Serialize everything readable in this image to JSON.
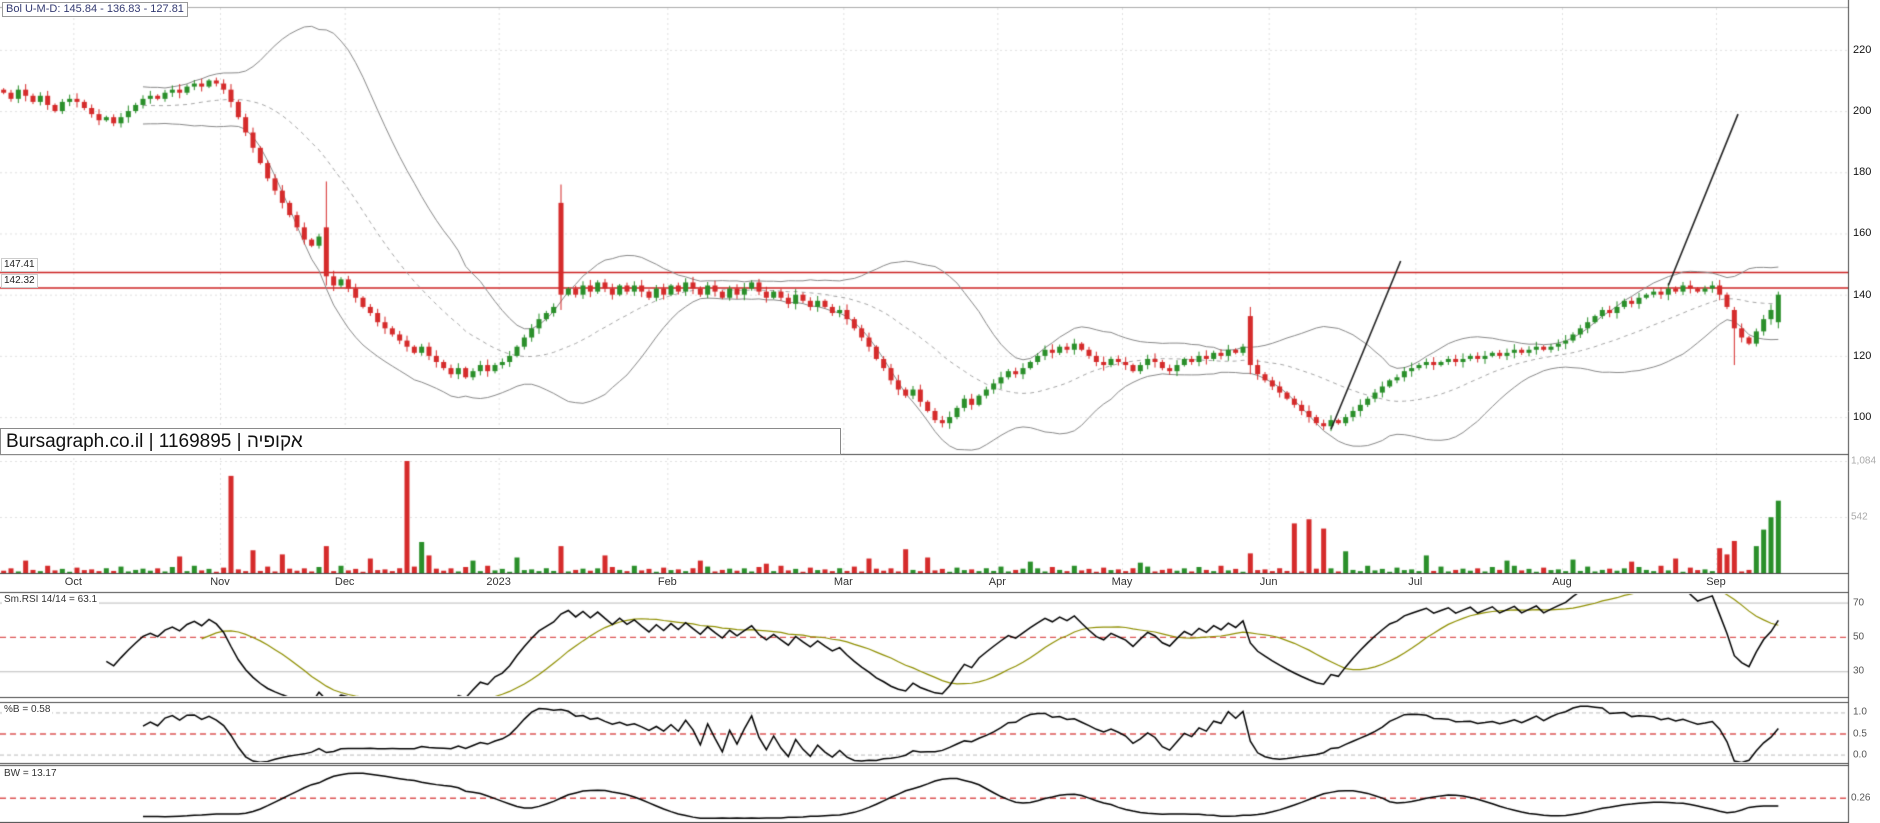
{
  "app": {
    "watermark": "Bursagraph.co.il | 1169895 | אקופיה"
  },
  "header": {
    "bollinger_label": "Bol U-M-D: 145.84 - 136.83 - 127.81"
  },
  "panels": {
    "rsi": {
      "label": "Sm.RSI 14/14 = 63.1",
      "ticks": [
        70,
        50,
        30
      ],
      "mid_line": 50
    },
    "percent_b": {
      "label": "%B = 0.58",
      "ticks": [
        "1.0",
        "0.5",
        "0.0"
      ],
      "mid_line": 0.5
    },
    "bandwidth": {
      "label": "BW = 13.17",
      "level": 0.26,
      "level_label": "0.26"
    }
  },
  "chart_data": {
    "type": "candlestick",
    "title": "Bursagraph daily chart with Bollinger Bands, volume, Sm.RSI, %B and Bandwidth",
    "x_axis": {
      "months": [
        {
          "label": "Oct",
          "day": 10
        },
        {
          "label": "Nov",
          "day": 30
        },
        {
          "label": "Dec",
          "day": 47
        },
        {
          "label": "2023",
          "day": 68
        },
        {
          "label": "Feb",
          "day": 91
        },
        {
          "label": "Mar",
          "day": 115
        },
        {
          "label": "Apr",
          "day": 136
        },
        {
          "label": "May",
          "day": 153
        },
        {
          "label": "Jun",
          "day": 173
        },
        {
          "label": "Jul",
          "day": 193
        },
        {
          "label": "Aug",
          "day": 213
        },
        {
          "label": "Sep",
          "day": 234
        }
      ]
    },
    "y_axis": {
      "price_ticks": [
        220,
        200,
        180,
        160,
        140,
        120,
        100
      ],
      "price_range": [
        93,
        232
      ],
      "volume_ticks": [
        {
          "label": "1,084",
          "value": 1084
        },
        {
          "label": "542",
          "value": 542
        }
      ]
    },
    "levels": [
      {
        "value": 147.41,
        "label": "147.41"
      },
      {
        "value": 142.32,
        "label": "142.32"
      }
    ],
    "candles": {
      "closes": [
        206,
        204,
        207,
        205,
        203,
        205,
        202,
        200,
        203,
        204,
        203,
        201,
        199,
        197,
        198,
        196,
        198,
        200,
        202,
        204,
        205,
        204,
        206,
        207,
        206,
        208,
        209,
        208,
        210,
        209,
        207,
        203,
        198,
        193,
        188,
        183,
        178,
        174,
        170,
        166,
        162,
        158,
        156,
        159,
        146,
        143,
        145,
        142,
        139,
        136,
        134,
        131,
        129,
        127,
        125,
        123,
        121,
        123,
        120,
        118,
        116,
        114,
        116,
        113,
        115,
        117,
        115,
        117,
        118,
        120,
        123,
        126,
        129,
        132,
        134,
        136,
        140,
        142,
        140,
        143,
        141,
        144,
        142,
        140,
        143,
        141,
        143,
        141,
        139,
        142,
        140,
        143,
        141,
        144,
        142,
        140,
        143,
        141,
        139,
        142,
        140,
        142,
        144,
        141,
        139,
        141,
        139,
        137,
        140,
        138,
        136,
        138,
        136,
        134,
        135,
        132,
        129,
        126,
        123,
        119,
        116,
        112,
        109,
        107,
        109,
        105,
        102,
        99,
        98,
        100,
        103,
        106,
        104,
        107,
        109,
        111,
        113,
        115,
        114,
        116,
        118,
        120,
        122,
        121,
        123,
        122,
        124,
        122,
        120,
        118,
        117,
        119,
        118,
        117,
        115,
        117,
        119,
        118,
        116,
        115,
        117,
        119,
        118,
        120,
        119,
        121,
        120,
        122,
        121,
        123,
        117,
        114,
        112,
        110,
        108,
        106,
        104,
        102,
        100,
        98,
        97,
        99,
        98,
        100,
        102,
        104,
        106,
        108,
        110,
        112,
        113,
        115,
        116,
        117,
        118,
        117,
        118,
        119,
        118,
        119,
        120,
        119,
        120,
        121,
        120,
        121,
        122,
        121,
        122,
        123,
        122,
        123,
        124,
        125,
        127,
        129,
        131,
        133,
        135,
        134,
        136,
        138,
        137,
        139,
        140,
        141,
        140,
        142,
        141,
        143,
        142,
        141,
        142,
        143,
        140,
        136,
        129,
        126,
        124,
        128,
        132,
        135,
        140
      ],
      "special": {
        "44": [
          162,
          177,
          143,
          146
        ],
        "76": [
          170,
          176,
          135,
          140
        ],
        "170": [
          133,
          136,
          114,
          117
        ],
        "236": [
          135,
          136,
          117,
          129
        ],
        "242": [
          131,
          141,
          129,
          140
        ]
      }
    },
    "volume": {
      "unit_pattern": [
        22,
        45,
        15,
        58,
        30,
        18,
        70,
        25,
        40,
        12,
        52,
        28,
        35,
        18,
        46,
        20,
        62,
        15,
        30,
        42
      ],
      "spikes": {
        "3": 120,
        "24": 160,
        "31": 940,
        "34": 220,
        "38": 180,
        "44": 260,
        "50": 140,
        "55": 1084,
        "57": 300,
        "58": 170,
        "64": 120,
        "70": 150,
        "76": 260,
        "82": 170,
        "95": 120,
        "104": 90,
        "118": 140,
        "123": 230,
        "126": 150,
        "140": 110,
        "155": 100,
        "170": 190,
        "176": 480,
        "178": 520,
        "180": 430,
        "183": 210,
        "194": 170,
        "205": 120,
        "214": 130,
        "222": 110,
        "228": 140,
        "234": 240,
        "235": 180,
        "236": 310,
        "239": 260,
        "240": 420,
        "241": 540,
        "242": 700
      }
    },
    "annotations": {
      "trend_lines": [
        {
          "from": [
            181,
            96
          ],
          "to": [
            190.5,
            151
          ]
        },
        {
          "from": [
            227,
            143
          ],
          "to": [
            236.5,
            199
          ]
        }
      ]
    },
    "indicators": {
      "bollinger_period": 20,
      "bollinger_mult": 2,
      "rsi_period": 14,
      "rsi_smooth": 14
    },
    "colors": {
      "up": "#2a8f2a",
      "down": "#d52b2b",
      "band": "#888888",
      "band_mid": "#a5a5a5",
      "level": "#cc2222",
      "dashed": "#dd5555",
      "indicator_line": "#000000",
      "rsi_signal": "#8f8f00",
      "trend": "#222222",
      "grid": "#e0e0e0",
      "frame": "#444444",
      "light_line": "#bbbbbb"
    }
  }
}
